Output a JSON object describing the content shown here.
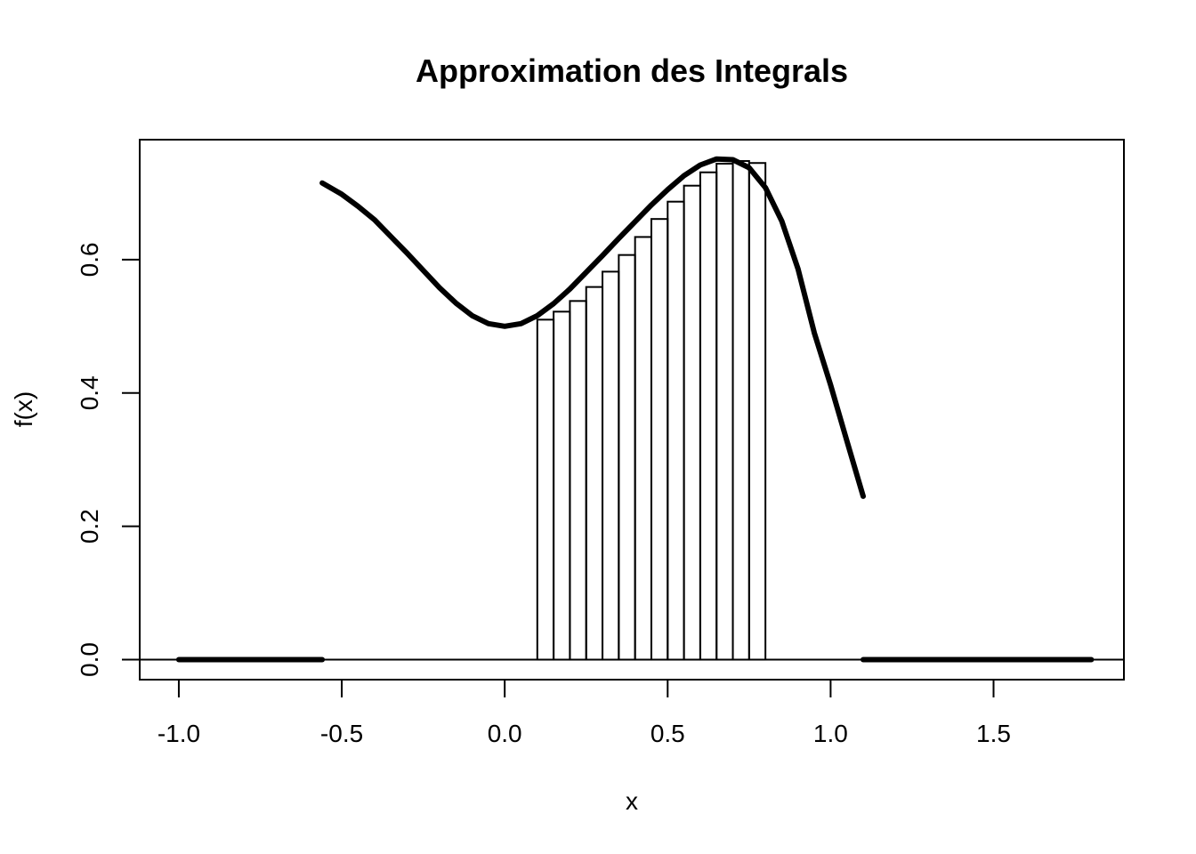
{
  "chart_data": {
    "type": "line",
    "title": "Approximation des Integrals",
    "xlabel": "x",
    "ylabel": "f(x)",
    "xlim": [
      -1.12,
      1.9
    ],
    "ylim": [
      -0.03,
      0.78
    ],
    "x_ticks": [
      -1.0,
      -0.5,
      0.0,
      0.5,
      1.0,
      1.5
    ],
    "x_tick_labels": [
      "-1.0",
      "-0.5",
      "0.0",
      "0.5",
      "1.0",
      "1.5"
    ],
    "y_ticks": [
      0.0,
      0.2,
      0.4,
      0.6
    ],
    "y_tick_labels": [
      "0.0",
      "0.2",
      "0.4",
      "0.6"
    ],
    "grid": false,
    "legend": "none",
    "baseline_y": 0,
    "series": [
      {
        "style": "thick-line",
        "segments": [
          {
            "x": [
              -1.0,
              -0.56
            ],
            "y": [
              0.0,
              0.0
            ]
          },
          {
            "x": [
              -0.56,
              -0.5,
              -0.45,
              -0.4,
              -0.35,
              -0.3,
              -0.25,
              -0.2,
              -0.15,
              -0.1,
              -0.05,
              0.0,
              0.05,
              0.1,
              0.15,
              0.2,
              0.25,
              0.3,
              0.35,
              0.4,
              0.45,
              0.5,
              0.55,
              0.6,
              0.65,
              0.7,
              0.75,
              0.8,
              0.85,
              0.9,
              0.95,
              1.0,
              1.05,
              1.1
            ],
            "y": [
              0.715,
              0.698,
              0.68,
              0.66,
              0.635,
              0.61,
              0.584,
              0.558,
              0.535,
              0.516,
              0.504,
              0.5,
              0.504,
              0.516,
              0.534,
              0.556,
              0.581,
              0.606,
              0.632,
              0.657,
              0.682,
              0.705,
              0.726,
              0.742,
              0.751,
              0.75,
              0.738,
              0.708,
              0.658,
              0.586,
              0.49,
              0.412,
              0.328,
              0.245
            ]
          },
          {
            "x": [
              1.1,
              1.8
            ],
            "y": [
              0.0,
              0.0
            ]
          }
        ]
      }
    ],
    "bars": {
      "style": "outline",
      "left_edges": [
        0.1,
        0.15,
        0.2,
        0.25,
        0.3,
        0.35,
        0.4,
        0.45,
        0.5,
        0.55,
        0.6,
        0.65,
        0.7,
        0.75
      ],
      "width": 0.05,
      "heights": [
        0.51,
        0.522,
        0.538,
        0.559,
        0.582,
        0.607,
        0.634,
        0.661,
        0.687,
        0.711,
        0.731,
        0.744,
        0.748,
        0.745
      ]
    }
  }
}
